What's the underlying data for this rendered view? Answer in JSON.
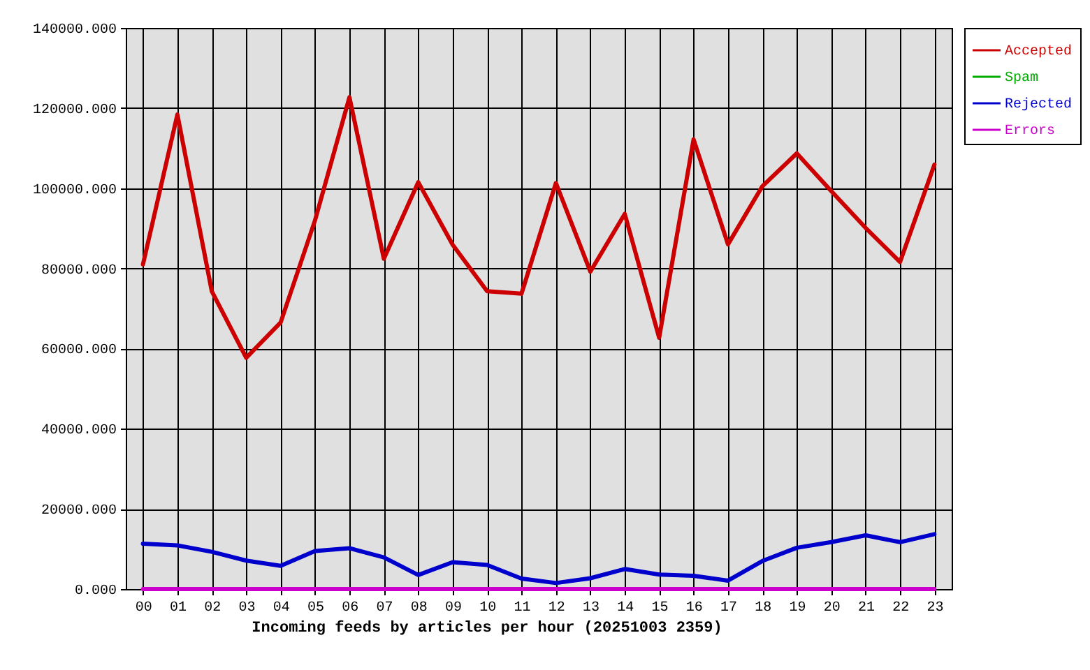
{
  "chart_data": {
    "type": "line",
    "xlabel": "Incoming feeds by articles per hour (20251003 2359)",
    "categories": [
      "00",
      "01",
      "02",
      "03",
      "04",
      "05",
      "06",
      "07",
      "08",
      "09",
      "10",
      "11",
      "12",
      "13",
      "14",
      "15",
      "16",
      "17",
      "18",
      "19",
      "20",
      "21",
      "22",
      "23"
    ],
    "series": [
      {
        "name": "Accepted",
        "color": "#cc0000",
        "values": [
          81000,
          118400,
          74300,
          57700,
          66500,
          92000,
          122700,
          82400,
          101500,
          85900,
          74300,
          73700,
          101300,
          79200,
          93600,
          62700,
          112200,
          86000,
          100500,
          108700,
          99300,
          90100,
          81600,
          105900
        ]
      },
      {
        "name": "Spam",
        "color": "#00aa00",
        "values": [
          null,
          null,
          null,
          null,
          null,
          null,
          null,
          null,
          null,
          null,
          null,
          null,
          null,
          null,
          null,
          null,
          null,
          null,
          null,
          null,
          null,
          null,
          null,
          null
        ]
      },
      {
        "name": "Rejected",
        "color": "#0000cc",
        "values": [
          11300,
          10900,
          9300,
          7100,
          5800,
          9500,
          10200,
          7900,
          3500,
          6700,
          6000,
          2600,
          1500,
          2700,
          5000,
          3600,
          3300,
          2100,
          7000,
          10300,
          11700,
          13400,
          11700,
          13700
        ]
      },
      {
        "name": "Errors",
        "color": "#cc00cc",
        "values": [
          0,
          0,
          0,
          0,
          0,
          0,
          0,
          0,
          0,
          0,
          0,
          0,
          0,
          0,
          0,
          0,
          0,
          0,
          0,
          0,
          0,
          0,
          0,
          0
        ]
      }
    ],
    "ylim": [
      0,
      140000
    ],
    "yticks": [
      {
        "value": 0,
        "label": "0.000"
      },
      {
        "value": 20000,
        "label": "20000.000"
      },
      {
        "value": 40000,
        "label": "40000.000"
      },
      {
        "value": 60000,
        "label": "60000.000"
      },
      {
        "value": 80000,
        "label": "80000.000"
      },
      {
        "value": 100000,
        "label": "100000.000"
      },
      {
        "value": 120000,
        "label": "120000.000"
      },
      {
        "value": 140000,
        "label": "140000.000"
      }
    ],
    "grid": true,
    "legend": "top right"
  }
}
